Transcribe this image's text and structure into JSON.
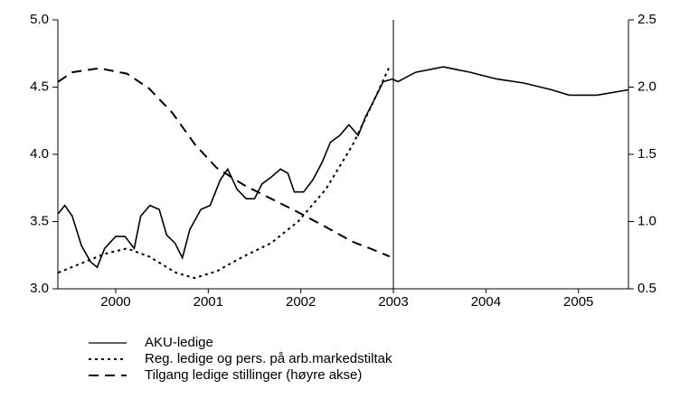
{
  "chart_data": {
    "type": "line",
    "xlim": [
      1999.375,
      2005.54
    ],
    "xticks": [
      2000,
      2001,
      2002,
      2003,
      2004,
      2005
    ],
    "ylim": [
      3.0,
      5.0
    ],
    "yticks": [
      {
        "value": 3.0,
        "label": "3.0"
      },
      {
        "value": 3.5,
        "label": "3.5"
      },
      {
        "value": 4.0,
        "label": "4.0"
      },
      {
        "value": 4.5,
        "label": "4.5"
      },
      {
        "value": 5.0,
        "label": "5.0"
      }
    ],
    "y2lim": [
      0.5,
      2.5
    ],
    "y2ticks": [
      {
        "value": 0.5,
        "label": "0.5"
      },
      {
        "value": 1.0,
        "label": "1.0"
      },
      {
        "value": 1.5,
        "label": "1.5"
      },
      {
        "value": 2.0,
        "label": "2.0"
      },
      {
        "value": 2.5,
        "label": "2.5"
      }
    ],
    "vline": 2003,
    "series": [
      {
        "name": "AKU-ledige",
        "color": "#000000",
        "dash": "solid",
        "x": [
          1999.38,
          1999.45,
          1999.53,
          1999.63,
          1999.73,
          1999.8,
          1999.88,
          2000,
          2000.1,
          2000.2,
          2000.27,
          2000.37,
          2000.47,
          2000.55,
          2000.64,
          2000.72,
          2000.8,
          2000.92,
          2001.02,
          2001.13,
          2001.21,
          2001.31,
          2001.41,
          2001.5,
          2001.58,
          2001.68,
          2001.78,
          2001.86,
          2001.93,
          2002.03,
          2002.13,
          2002.23,
          2002.32,
          2002.42,
          2002.52,
          2002.62,
          2002.7,
          2002.79,
          2002.89,
          2002.99,
          2003.05,
          2003.24,
          2003.54,
          2003.83,
          2004.12,
          2004.41,
          2004.71,
          2004.9,
          2005.2,
          2005.54
        ],
        "values": [
          3.56,
          3.62,
          3.54,
          3.32,
          3.2,
          3.16,
          3.3,
          3.39,
          3.39,
          3.3,
          3.54,
          3.62,
          3.59,
          3.4,
          3.34,
          3.23,
          3.44,
          3.59,
          3.62,
          3.81,
          3.89,
          3.74,
          3.67,
          3.67,
          3.78,
          3.83,
          3.89,
          3.86,
          3.72,
          3.72,
          3.81,
          3.94,
          4.09,
          4.14,
          4.22,
          4.14,
          4.28,
          4.4,
          4.54,
          4.56,
          4.54,
          4.61,
          4.65,
          4.61,
          4.56,
          4.53,
          4.48,
          4.44,
          4.44,
          4.48
        ]
      },
      {
        "name": "Reg. ledige og pers. på arb.markedstiltak",
        "color": "#000000",
        "dash": "dotted",
        "x": [
          1999.38,
          1999.63,
          1999.88,
          2000.12,
          2000.36,
          2000.65,
          2000.85,
          2001.09,
          2001.38,
          2001.68,
          2001.97,
          2002.27,
          2002.56,
          2002.75,
          2002.95
        ],
        "values": [
          3.12,
          3.19,
          3.26,
          3.3,
          3.24,
          3.12,
          3.08,
          3.13,
          3.24,
          3.34,
          3.5,
          3.74,
          4.07,
          4.34,
          4.64
        ]
      },
      {
        "name": "Tilgang ledige stillinger (høyre akse)",
        "color": "#000000",
        "dash": "dashed",
        "axis": "y2",
        "x": [
          1999.38,
          1999.53,
          1999.82,
          2000.12,
          2000.36,
          2000.61,
          2000.86,
          2001.09,
          2001.39,
          2001.68,
          2001.97,
          2002.27,
          2002.56,
          2002.75,
          2002.96
        ],
        "values": [
          2.04,
          2.11,
          2.14,
          2.1,
          1.99,
          1.81,
          1.57,
          1.4,
          1.27,
          1.17,
          1.07,
          0.96,
          0.85,
          0.8,
          0.74
        ]
      }
    ]
  }
}
